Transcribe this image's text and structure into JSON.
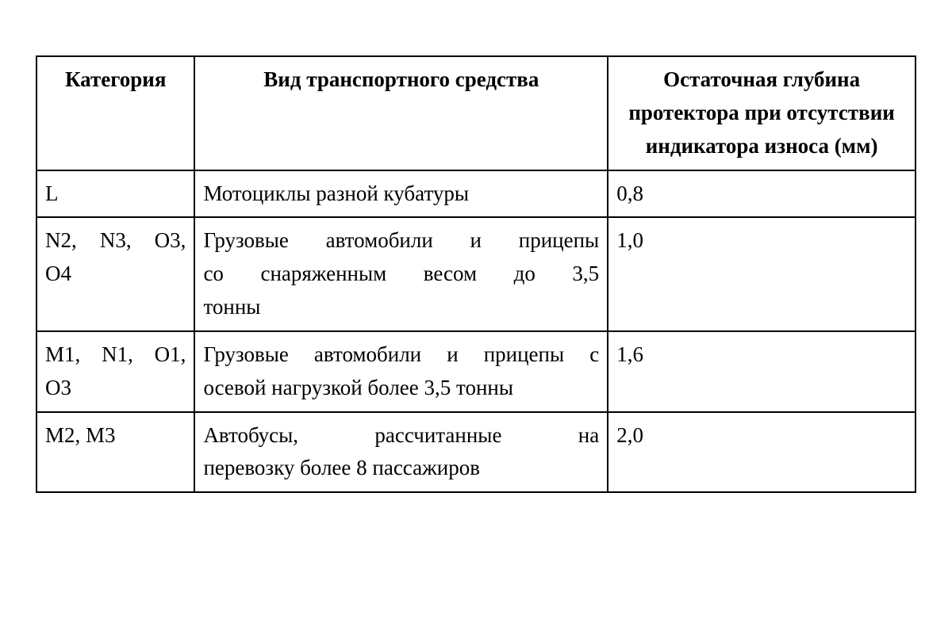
{
  "table": {
    "type": "table",
    "background_color": "#ffffff",
    "border_color": "#000000",
    "border_width": 2,
    "font_family": "Times New Roman",
    "header_fontsize": 27,
    "cell_fontsize": 27,
    "header_fontweight": "bold",
    "cell_fontweight": "normal",
    "text_color": "#000000",
    "column_widths_percent": [
      18,
      47,
      35
    ],
    "header_alignment": "center",
    "cell_alignment_col0": "justify",
    "cell_alignment_col1": "justify",
    "cell_alignment_col2": "left",
    "columns": [
      "Категория",
      "Вид транспортного средства",
      "Остаточная глубина протектора при отсутствии индикатора износа (мм)"
    ],
    "rows": [
      {
        "category": "L",
        "vehicle_type": "Мотоциклы разной кубатуры",
        "depth": "0,8"
      },
      {
        "category_line1": "N2, N3, O3,",
        "category_line2": "O4",
        "type_line1": "Грузовые автомобили и прицепы",
        "type_line2": "со снаряженным весом до 3,5",
        "type_line3": "тонны",
        "depth": "1,0"
      },
      {
        "category_line1": "M1, N1, O1,",
        "category_line2": "O3",
        "type_line1": "Грузовые автомобили и прицепы с",
        "type_line2": "осевой нагрузкой более 3,5 тонны",
        "depth": "1,6"
      },
      {
        "category": "M2, M3",
        "type_line1": "Автобусы, рассчитанные на",
        "type_line2": "перевозку более 8 пассажиров",
        "depth": "2,0"
      }
    ]
  }
}
